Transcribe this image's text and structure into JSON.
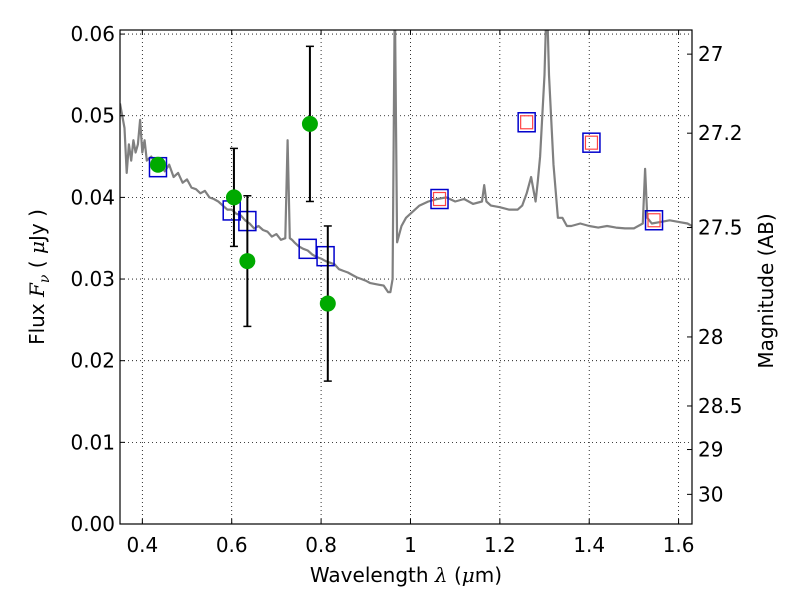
{
  "chart_data": {
    "type": "scatter",
    "xlabel": "Wavelength  λ (μm)",
    "ylabel": "Flux  F_ν  ( μJy )",
    "y2label": "Magnitude (AB)",
    "xlim": [
      0.35,
      1.63
    ],
    "ylim": [
      0.0,
      0.0605
    ],
    "xticks": [
      0.4,
      0.6,
      0.8,
      1.0,
      1.2,
      1.4,
      1.6
    ],
    "xtick_labels": [
      "0.4",
      "0.6",
      "0.8",
      "1",
      "1.2",
      "1.4",
      "1.6"
    ],
    "yticks": [
      0.0,
      0.01,
      0.02,
      0.03,
      0.04,
      0.05,
      0.06
    ],
    "ytick_labels": [
      "0.00",
      "0.01",
      "0.02",
      "0.03",
      "0.04",
      "0.05",
      "0.06"
    ],
    "y2ticks": [
      27,
      27.2,
      27.5,
      28,
      28.5,
      29,
      30
    ],
    "y2tick_labels": [
      "27",
      "27.2",
      "27.5",
      "28",
      "28.5",
      "29",
      "30"
    ],
    "grid": true,
    "colors": {
      "spectrum": "#808080",
      "observed": "#00aa00",
      "model_outer": "#0000cc",
      "model_inner": "#ff4444",
      "errorbar": "#000000"
    },
    "series": [
      {
        "kind": "line",
        "x": [
          0.35,
          0.36,
          0.365,
          0.37,
          0.375,
          0.38,
          0.385,
          0.39,
          0.395,
          0.4,
          0.405,
          0.41,
          0.42,
          0.43,
          0.44,
          0.45,
          0.46,
          0.47,
          0.48,
          0.49,
          0.5,
          0.51,
          0.52,
          0.53,
          0.54,
          0.55,
          0.56,
          0.57,
          0.58,
          0.59,
          0.6,
          0.61,
          0.62,
          0.63,
          0.64,
          0.65,
          0.66,
          0.67,
          0.68,
          0.69,
          0.7,
          0.71,
          0.72,
          0.725,
          0.73,
          0.735,
          0.74,
          0.75,
          0.76,
          0.77,
          0.78,
          0.79,
          0.8,
          0.81,
          0.82,
          0.83,
          0.84,
          0.85,
          0.86,
          0.87,
          0.88,
          0.89,
          0.9,
          0.91,
          0.92,
          0.93,
          0.94,
          0.95,
          0.955,
          0.96,
          0.965,
          0.97,
          0.975,
          0.98,
          0.99,
          1.0,
          1.02,
          1.04,
          1.06,
          1.08,
          1.1,
          1.12,
          1.14,
          1.16,
          1.165,
          1.17,
          1.18,
          1.2,
          1.22,
          1.24,
          1.25,
          1.26,
          1.27,
          1.28,
          1.285,
          1.29,
          1.3,
          1.305,
          1.31,
          1.32,
          1.33,
          1.34,
          1.35,
          1.36,
          1.38,
          1.4,
          1.42,
          1.44,
          1.46,
          1.48,
          1.5,
          1.52,
          1.525,
          1.53,
          1.54,
          1.56,
          1.58,
          1.6,
          1.62,
          1.63
        ],
        "y": [
          0.0515,
          0.0485,
          0.043,
          0.0465,
          0.0445,
          0.047,
          0.0455,
          0.0465,
          0.0495,
          0.0455,
          0.047,
          0.0445,
          0.045,
          0.044,
          0.0445,
          0.0432,
          0.044,
          0.0425,
          0.043,
          0.0418,
          0.0422,
          0.0412,
          0.041,
          0.0405,
          0.0408,
          0.04,
          0.0398,
          0.0395,
          0.039,
          0.0385,
          0.0385,
          0.038,
          0.0378,
          0.0372,
          0.0368,
          0.0362,
          0.0365,
          0.036,
          0.0358,
          0.0352,
          0.0355,
          0.0348,
          0.035,
          0.047,
          0.035,
          0.0348,
          0.0345,
          0.034,
          0.0337,
          0.0335,
          0.033,
          0.0327,
          0.0325,
          0.0322,
          0.032,
          0.0318,
          0.0312,
          0.031,
          0.0308,
          0.0305,
          0.0302,
          0.03,
          0.0298,
          0.0295,
          0.0294,
          0.0293,
          0.0292,
          0.0284,
          0.0284,
          0.03,
          0.065,
          0.0345,
          0.0355,
          0.0365,
          0.0375,
          0.038,
          0.039,
          0.0395,
          0.0398,
          0.04,
          0.0395,
          0.0398,
          0.0392,
          0.0395,
          0.0415,
          0.0395,
          0.039,
          0.0388,
          0.0385,
          0.0385,
          0.039,
          0.0405,
          0.0425,
          0.0395,
          0.042,
          0.045,
          0.055,
          0.065,
          0.055,
          0.044,
          0.0375,
          0.0375,
          0.0365,
          0.0365,
          0.0368,
          0.0365,
          0.0363,
          0.0365,
          0.0363,
          0.0362,
          0.0362,
          0.0368,
          0.0435,
          0.0375,
          0.0368,
          0.037,
          0.0372,
          0.037,
          0.0368,
          0.0365
        ]
      },
      {
        "kind": "points",
        "marker": "circle",
        "x": [
          0.435,
          0.605,
          0.635,
          0.775,
          0.815
        ],
        "y": [
          0.044,
          0.04,
          0.0322,
          0.049,
          0.027
        ],
        "yerr": [
          null,
          0.006,
          0.008,
          0.0095,
          0.0095
        ]
      },
      {
        "kind": "points",
        "marker": "square",
        "x": [
          0.435,
          0.6,
          0.635,
          0.77,
          0.81,
          1.065,
          1.26,
          1.405,
          1.545
        ],
        "y": [
          0.0437,
          0.0384,
          0.0371,
          0.0337,
          0.0328,
          0.0398,
          0.0492,
          0.0467,
          0.0372
        ],
        "inner_x": [
          1.065,
          1.26,
          1.405,
          1.545
        ],
        "inner_y": [
          0.0398,
          0.0492,
          0.0467,
          0.0372
        ]
      }
    ]
  }
}
